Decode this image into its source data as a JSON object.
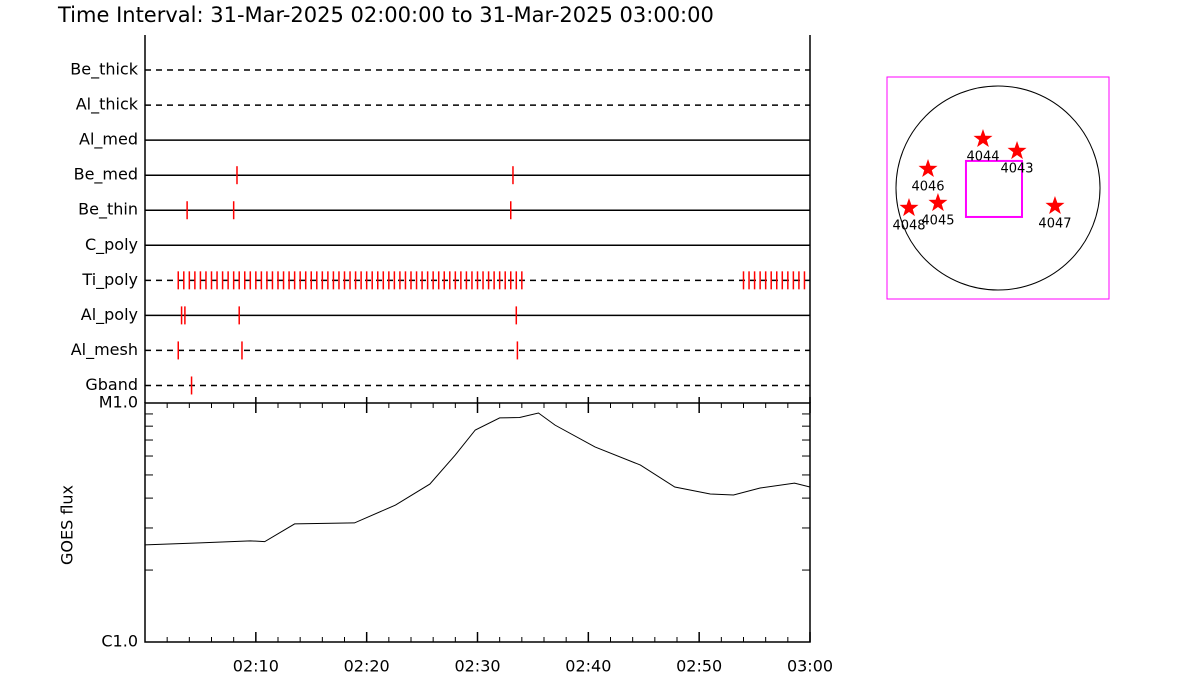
{
  "chart_data": [
    {
      "type": "timeline",
      "title": "Time Interval: 31-Mar-2025 02:00:00 to 31-Mar-2025 03:00:00",
      "xlim": [
        0,
        60
      ],
      "color": "#ff0000",
      "rows": [
        {
          "name": "Be_thick",
          "style": "dashed",
          "events": []
        },
        {
          "name": "Al_thick",
          "style": "dashed",
          "events": []
        },
        {
          "name": "Al_med",
          "style": "solid",
          "events": []
        },
        {
          "name": "Be_med",
          "style": "solid",
          "events": [
            8.3,
            33.2
          ]
        },
        {
          "name": "Be_thin",
          "style": "solid",
          "events": [
            3.8,
            8.0,
            33.0
          ]
        },
        {
          "name": "C_poly",
          "style": "solid",
          "events": []
        },
        {
          "name": "Ti_poly",
          "style": "dashed",
          "events": [
            3.0,
            3.5,
            4.0,
            4.5,
            5.0,
            5.5,
            6.0,
            6.5,
            7.0,
            7.5,
            8.0,
            8.5,
            9.0,
            9.5,
            10.0,
            10.5,
            11.0,
            11.5,
            12.0,
            12.5,
            13.0,
            13.5,
            14.0,
            14.5,
            15.0,
            15.5,
            16.0,
            16.5,
            17.0,
            17.5,
            18.0,
            18.5,
            19.0,
            19.5,
            20.0,
            20.5,
            21.0,
            21.5,
            22.0,
            22.5,
            23.0,
            23.5,
            24.0,
            24.5,
            25.0,
            25.5,
            26.0,
            26.5,
            27.0,
            27.5,
            28.0,
            28.5,
            29.0,
            29.5,
            30.0,
            30.5,
            31.0,
            31.5,
            32.0,
            32.5,
            33.0,
            33.5,
            34.0,
            54.0,
            54.5,
            55.0,
            55.5,
            56.0,
            56.5,
            57.0,
            57.5,
            58.0,
            58.5,
            59.0,
            59.5
          ]
        },
        {
          "name": "Al_poly",
          "style": "solid",
          "events": [
            3.3,
            3.6,
            8.5,
            33.5
          ]
        },
        {
          "name": "Al_mesh",
          "style": "dashed",
          "events": [
            3.0,
            8.75,
            33.6
          ]
        },
        {
          "name": "Gband",
          "style": "dashed",
          "events": [
            4.2
          ]
        }
      ]
    },
    {
      "type": "line",
      "ylabel": "GOES flux",
      "xlim": [
        0,
        60
      ],
      "xticks": [
        {
          "value": 10,
          "label": "02:10"
        },
        {
          "value": 20,
          "label": "02:20"
        },
        {
          "value": 30,
          "label": "02:30"
        },
        {
          "value": 40,
          "label": "02:40"
        },
        {
          "value": 50,
          "label": "02:50"
        },
        {
          "value": 60,
          "label": "03:00"
        }
      ],
      "xminorticks": [
        2,
        4,
        6,
        8,
        12,
        14,
        16,
        18,
        22,
        24,
        26,
        28,
        32,
        34,
        36,
        38,
        42,
        44,
        46,
        48,
        52,
        54,
        56,
        58
      ],
      "ylim": [
        1e-06,
        1e-05
      ],
      "log": true,
      "yticks": [
        {
          "value": 1e-06,
          "label": "C1.0"
        },
        {
          "value": 1e-05,
          "label": "M1.0"
        }
      ],
      "yminorticks": [
        2e-06,
        3e-06,
        4e-06,
        5e-06,
        6e-06,
        7e-06,
        8e-06,
        9e-06
      ],
      "color": "#000000",
      "x": [
        0,
        4.96,
        9.5,
        10.8,
        13.5,
        18.9,
        22.6,
        25.7,
        28.0,
        29.8,
        32.0,
        33.8,
        35.5,
        37.0,
        40.6,
        44.7,
        47.8,
        51.0,
        53.1,
        55.5,
        58.6,
        60
      ],
      "values": [
        2.55e-06,
        2.6e-06,
        2.65e-06,
        2.63e-06,
        3.12e-06,
        3.15e-06,
        3.74e-06,
        4.58e-06,
        6.06e-06,
        7.71e-06,
        8.66e-06,
        8.7e-06,
        9.08e-06,
        8.08e-06,
        6.55e-06,
        5.5e-06,
        4.45e-06,
        4.16e-06,
        4.12e-06,
        4.41e-06,
        4.62e-06,
        4.45e-06
      ]
    },
    {
      "type": "map",
      "xlim": [
        -1050,
        1050
      ],
      "ylim": [
        -1050,
        1050
      ],
      "disk_radius": 965,
      "frame_color": "#ff00ff",
      "fov": {
        "center": [
          -38,
          -9
        ],
        "size": 530,
        "color": "#ff00ff"
      },
      "color": "#ff0000",
      "regions": [
        {
          "label": "4044",
          "x": -142,
          "y": 464
        },
        {
          "label": "4043",
          "x": 180,
          "y": 350
        },
        {
          "label": "4046",
          "x": -662,
          "y": 180
        },
        {
          "label": "4045",
          "x": -568,
          "y": -142
        },
        {
          "label": "4048",
          "x": -842,
          "y": -189
        },
        {
          "label": "4047",
          "x": 539,
          "y": -170
        }
      ]
    }
  ]
}
